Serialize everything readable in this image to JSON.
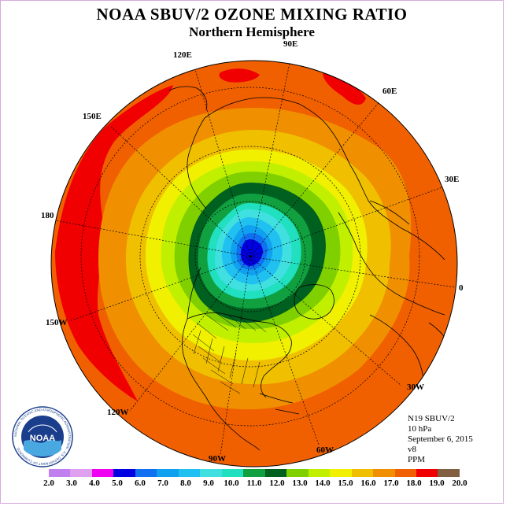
{
  "title": "NOAA SBUV/2 OZONE MIXING RATIO",
  "subtitle": "Northern Hemisphere",
  "longitude_labels": {
    "lon_120e": "120E",
    "lon_90e": "90E",
    "lon_60e": "60E",
    "lon_30e": "30E",
    "lon_0": "0",
    "lon_30w": "30W",
    "lon_60w": "60W",
    "lon_90w": "90W",
    "lon_120w": "120W",
    "lon_150w": "150W",
    "lon_180": "180",
    "lon_150e": "150E"
  },
  "info": {
    "instrument": "N19 SBUV/2",
    "pressure": "10 hPa",
    "date": "September 6, 2015",
    "version": "v8",
    "units": "PPM"
  },
  "logo": {
    "text": "NOAA",
    "ring_text": "NATIONAL OCEANIC AND ATMOSPHERIC ADMINISTRATION · U.S. DEPARTMENT OF COMMERCE"
  },
  "colorbar": {
    "ticks": [
      "2.0",
      "3.0",
      "4.0",
      "5.0",
      "6.0",
      "7.0",
      "8.0",
      "9.0",
      "10.0",
      "11.0",
      "12.0",
      "13.0",
      "14.0",
      "15.0",
      "16.0",
      "17.0",
      "18.0",
      "19.0",
      "20.0"
    ],
    "colors": [
      "#c080f0",
      "#e0a0f0",
      "#f000f0",
      "#0000e0",
      "#1070f0",
      "#10a0f0",
      "#20c0f0",
      "#40e0e0",
      "#20e0c0",
      "#10a040",
      "#006020",
      "#80d000",
      "#c0f000",
      "#f0f000",
      "#f0c000",
      "#f09000",
      "#f06000",
      "#f00000",
      "#806040"
    ]
  },
  "map": {
    "projection": "polar stereographic, north pole centered",
    "contour_levels_ppm": [
      11,
      12,
      13,
      14,
      15,
      16,
      17,
      18,
      19
    ],
    "min_region_ppm": 6,
    "max_region_ppm": 19
  }
}
